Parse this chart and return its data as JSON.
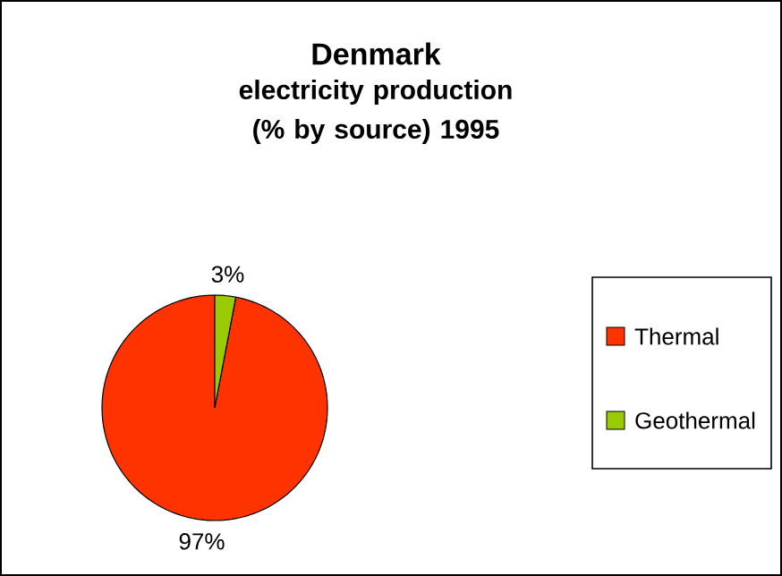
{
  "chart_data": {
    "type": "pie",
    "title": "Denmark",
    "subtitle": "electricity production (% by source) 1995",
    "categories": [
      "Thermal",
      "Geothermal"
    ],
    "values": [
      97,
      3
    ],
    "colors": [
      "#ff3300",
      "#99cc00"
    ],
    "value_labels": [
      "97%",
      "3%"
    ],
    "legend": "right"
  }
}
